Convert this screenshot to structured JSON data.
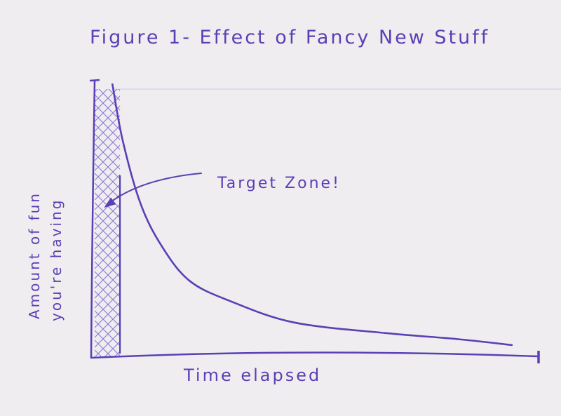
{
  "chart_data": {
    "type": "line",
    "title": "Figure 1- Effect of Fancy New Stuff",
    "xlabel": "Time elapsed",
    "ylabel": [
      "Amount of fun",
      "you're having"
    ],
    "xlim": [
      0,
      100
    ],
    "ylim": [
      0,
      100
    ],
    "grid": false,
    "series": [
      {
        "x": [
          4.3,
          6.6,
          10.6,
          15.3,
          21.6,
          31,
          45.2,
          65.7,
          81.4,
          94
        ],
        "y": [
          98.7,
          78.5,
          55.7,
          40.5,
          27.8,
          20.3,
          12.7,
          8.9,
          6.8,
          4.6
        ]
      }
    ],
    "highlight_region": {
      "x": [
        0,
        6
      ],
      "label": "Target Zone!"
    },
    "annotations": [
      {
        "text": "Target Zone!",
        "points_to": {
          "x": 2.7,
          "y": 55
        }
      }
    ],
    "colors": {
      "ink": "#5b3fb5",
      "paper": "#efedf0",
      "hatch": "#8a7ad0"
    }
  }
}
